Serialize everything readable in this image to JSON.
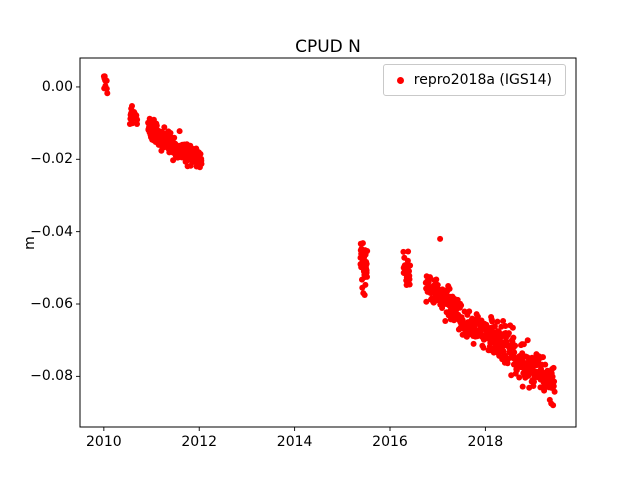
{
  "chart_data": {
    "type": "scatter",
    "title": "CPUD N",
    "xlabel": "",
    "ylabel": "m",
    "xlim": [
      2009.5,
      2019.9
    ],
    "ylim": [
      -0.094,
      0.008
    ],
    "grid": false,
    "legend_position": "upper right",
    "xticks": {
      "values": [
        2010,
        2012,
        2014,
        2016,
        2018
      ],
      "labels": [
        "2010",
        "2012",
        "2014",
        "2016",
        "2018"
      ]
    },
    "yticks": {
      "values": [
        0.0,
        -0.02,
        -0.04,
        -0.06,
        -0.08
      ],
      "labels": [
        "0.00",
        "−0.02",
        "−0.04",
        "−0.06",
        "−0.08"
      ]
    },
    "series": [
      {
        "name": "repro2018a (IGS14)",
        "color": "#ff0000",
        "marker": "circle",
        "marker_radius_px": 3,
        "clusters": [
          {
            "x0": 2010.0,
            "x1": 2010.07,
            "y0": 0.002,
            "y1": 0.0,
            "n": 12,
            "sd": 0.0012
          },
          {
            "x0": 2010.55,
            "x1": 2010.7,
            "y0": -0.0075,
            "y1": -0.0085,
            "n": 25,
            "sd": 0.0012
          },
          {
            "x0": 2010.93,
            "x1": 2011.1,
            "y0": -0.011,
            "y1": -0.013,
            "n": 40,
            "sd": 0.0015
          },
          {
            "x0": 2011.05,
            "x1": 2011.45,
            "y0": -0.013,
            "y1": -0.016,
            "n": 90,
            "sd": 0.0015
          },
          {
            "x0": 2011.45,
            "x1": 2012.05,
            "y0": -0.017,
            "y1": -0.02,
            "n": 110,
            "sd": 0.0014
          },
          {
            "x0": 2015.38,
            "x1": 2015.52,
            "y0": -0.0465,
            "y1": -0.0495,
            "n": 45,
            "sd": 0.0032
          },
          {
            "x0": 2016.28,
            "x1": 2016.42,
            "y0": -0.05,
            "y1": -0.0515,
            "n": 28,
            "sd": 0.0028
          },
          {
            "x0": 2016.75,
            "x1": 2017.1,
            "y0": -0.055,
            "y1": -0.0575,
            "n": 55,
            "sd": 0.0018
          },
          {
            "x0": 2017.1,
            "x1": 2017.5,
            "y0": -0.058,
            "y1": -0.064,
            "n": 70,
            "sd": 0.002
          },
          {
            "x0": 2017.5,
            "x1": 2018.1,
            "y0": -0.0655,
            "y1": -0.0685,
            "n": 90,
            "sd": 0.002
          },
          {
            "x0": 2018.1,
            "x1": 2018.6,
            "y0": -0.069,
            "y1": -0.0725,
            "n": 85,
            "sd": 0.0028
          },
          {
            "x0": 2018.6,
            "x1": 2019.1,
            "y0": -0.0755,
            "y1": -0.0785,
            "n": 85,
            "sd": 0.0025
          },
          {
            "x0": 2019.1,
            "x1": 2019.45,
            "y0": -0.079,
            "y1": -0.0815,
            "n": 55,
            "sd": 0.0022
          }
        ],
        "outliers": [
          [
            2017.05,
            -0.042
          ],
          [
            2015.44,
            -0.057
          ],
          [
            2015.47,
            -0.0575
          ],
          [
            2015.42,
            -0.0555
          ],
          [
            2016.38,
            -0.0455
          ],
          [
            2019.38,
            -0.0875
          ],
          [
            2019.42,
            -0.088
          ],
          [
            2019.35,
            -0.0865
          ]
        ]
      }
    ]
  }
}
